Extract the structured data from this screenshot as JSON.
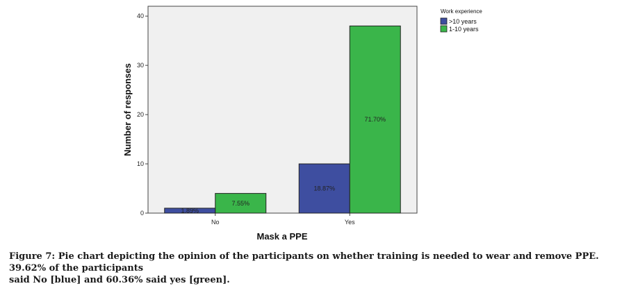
{
  "chart_data": {
    "type": "bar",
    "xlabel": "Mask a PPE",
    "ylabel": "Number of responses",
    "categories": [
      "No",
      "Yes"
    ],
    "ylim": [
      0,
      42
    ],
    "yticks": [
      0,
      10,
      20,
      30,
      40
    ],
    "grid": false,
    "legend_position": "top-right",
    "legend_title": "Work experience",
    "series": [
      {
        "name": ">10 years",
        "color": "#3e4ea0",
        "values": [
          1,
          10
        ],
        "labels": [
          "1.89%",
          "18.87%"
        ]
      },
      {
        "name": "1-10 years",
        "color": "#3ab54a",
        "values": [
          4,
          38
        ],
        "labels": [
          "7.55%",
          "71.70%"
        ]
      }
    ],
    "plot_background": "#f0f0f0"
  },
  "caption": {
    "line1": "Figure 7: Pie chart depicting the opinion of the participants on whether training is needed to wear and remove PPE. 39.62% of the participants",
    "line2": "said No [blue] and 60.36% said yes [green]."
  }
}
